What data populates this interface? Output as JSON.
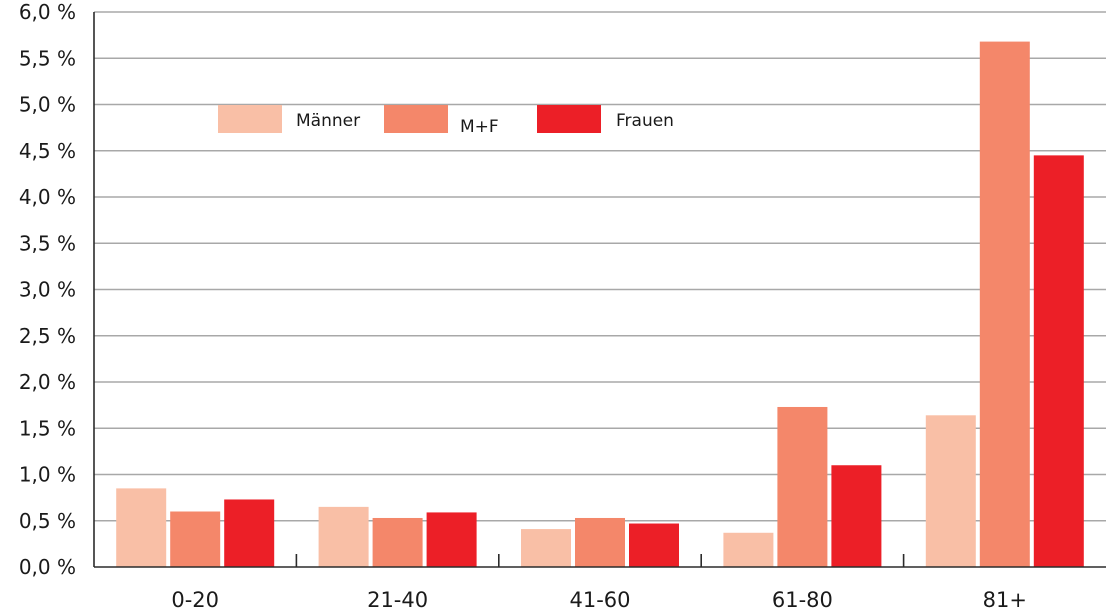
{
  "chart_data": {
    "type": "bar",
    "categories": [
      "0-20",
      "21-40",
      "41-60",
      "61-80",
      "81+"
    ],
    "series": [
      {
        "name": "Männer",
        "color": "#f9bfa6",
        "values": [
          0.85,
          0.65,
          0.41,
          0.37,
          1.64
        ]
      },
      {
        "name": "M+F",
        "color": "#f4876a",
        "values": [
          0.6,
          0.53,
          0.53,
          1.73,
          5.68
        ]
      },
      {
        "name": "Frauen",
        "color": "#ec1f27",
        "values": [
          0.73,
          0.59,
          0.47,
          1.1,
          4.45
        ]
      }
    ],
    "y_ticks": [
      "0,0 %",
      "0,5 %",
      "1,0 %",
      "1,5 %",
      "2,0 %",
      "2,5 %",
      "3,0 %",
      "3,5 %",
      "4,0 %",
      "4,5 %",
      "5,0 %",
      "5,5 %",
      "6,0 %"
    ],
    "ylim": [
      0,
      6
    ],
    "grid": true,
    "legend_position": "top-left"
  }
}
